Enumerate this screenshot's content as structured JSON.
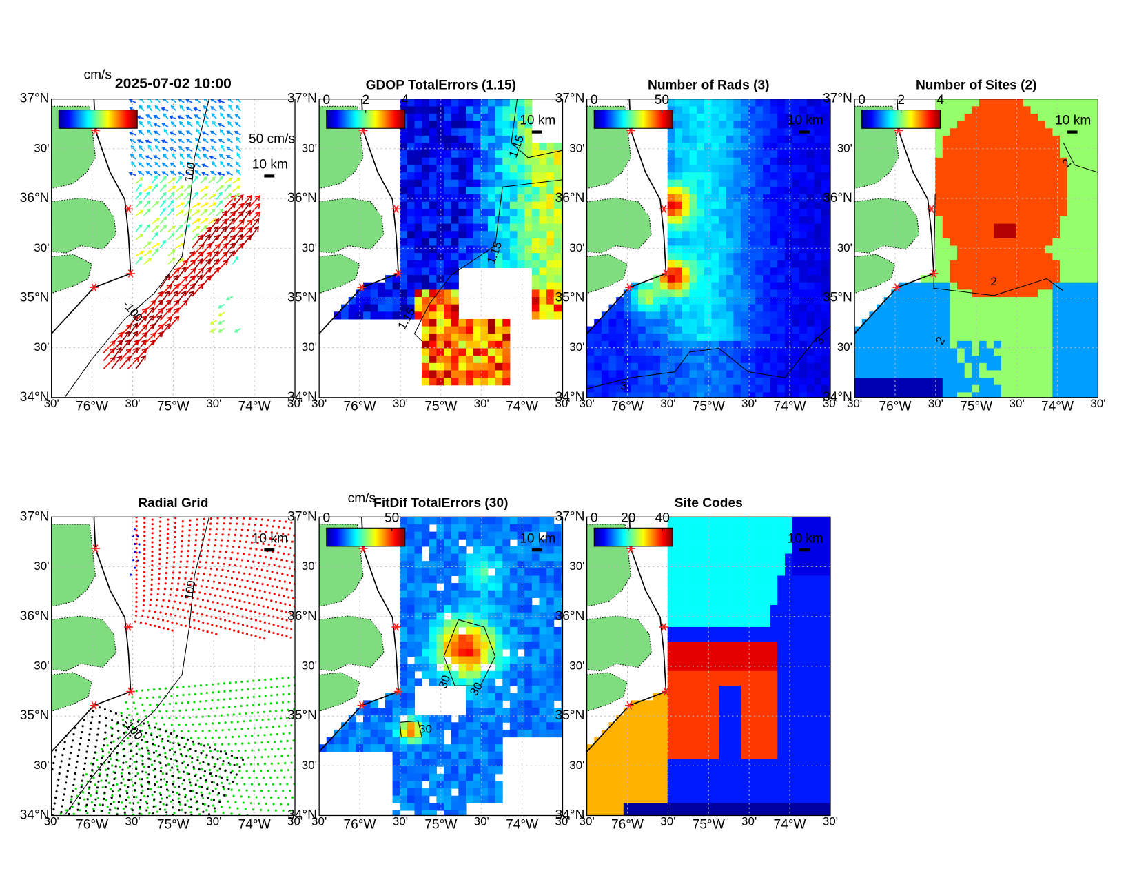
{
  "axes": {
    "lat_labels": [
      "37°N",
      "30'",
      "36°N",
      "30'",
      "35°N",
      "30'",
      "34°N"
    ],
    "lon_labels": [
      "30'",
      "76°W",
      "30'",
      "75°W",
      "30'",
      "74°W",
      "30'"
    ]
  },
  "panels": [
    {
      "title": "2025-07-02 10:00",
      "colorbar_label": "cm/s",
      "scale_label": "50 cm/s",
      "distance_label": "10 km",
      "contour_labels": [
        100,
        -100
      ]
    },
    {
      "title": "GDOP TotalErrors (1.15)",
      "colorbar_ticks": [
        0,
        2,
        4
      ],
      "colorbar_range": [
        0,
        4
      ],
      "distance_label": "10 km",
      "contour_labels": [
        1.15,
        1.15,
        1.15
      ]
    },
    {
      "title": "Number of Rads (3)",
      "colorbar_ticks": [
        0,
        50
      ],
      "colorbar_range": [
        0,
        58
      ],
      "distance_label": "10 km",
      "contour_labels": [
        3,
        3
      ]
    },
    {
      "title": "Number of Sites (2)",
      "colorbar_ticks": [
        0,
        2,
        4
      ],
      "colorbar_range": [
        0,
        4
      ],
      "distance_label": "10 km",
      "contour_labels": [
        2,
        2,
        2
      ]
    },
    {
      "title": "Radial Grid",
      "distance_label": "10 km",
      "contour_labels": [
        100,
        -100
      ]
    },
    {
      "title": "FitDif TotalErrors (30)",
      "colorbar_label": "cm/s",
      "colorbar_ticks": [
        0,
        50
      ],
      "colorbar_range": [
        0,
        60
      ],
      "distance_label": "10 km",
      "contour_labels": [
        30,
        30,
        30
      ]
    },
    {
      "title": "Site Codes",
      "colorbar_ticks": [
        0,
        20,
        40
      ],
      "colorbar_range": [
        0,
        46
      ],
      "distance_label": "10 km"
    }
  ]
}
